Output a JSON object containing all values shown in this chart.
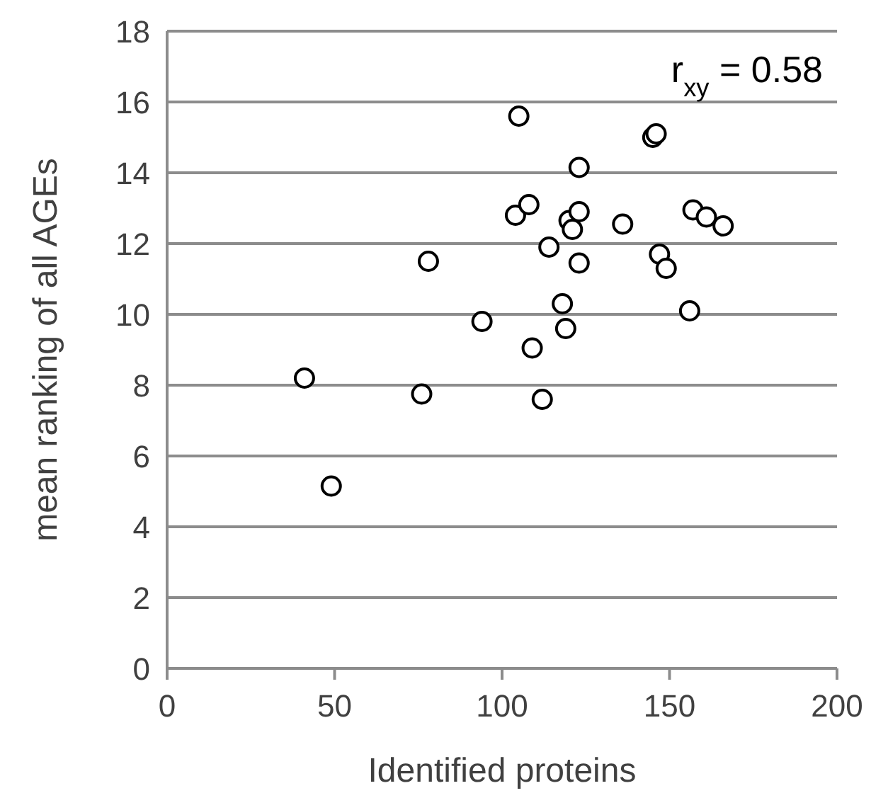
{
  "chart_data": {
    "type": "scatter",
    "xlabel": "Identified proteins",
    "ylabel": "mean ranking of all AGEs",
    "annotations": [
      "r$_{xy}$ = 0.58"
    ],
    "xlim": [
      0,
      200
    ],
    "xticks": [
      0,
      50,
      100,
      150,
      200
    ],
    "ylim": [
      0,
      18
    ],
    "yticks": [
      0,
      2,
      4,
      6,
      8,
      10,
      12,
      14,
      16,
      18
    ],
    "grid": "y",
    "marker": "circle",
    "series": [
      {
        "color": "#ffffff",
        "x": [
          41,
          49,
          76,
          78,
          94,
          104,
          105,
          108,
          109,
          112,
          114,
          118,
          119,
          120,
          121,
          123,
          123,
          123,
          136,
          145,
          146,
          147,
          149,
          156,
          157,
          161,
          166
        ],
        "values": [
          8.2,
          5.15,
          7.75,
          11.5,
          9.8,
          12.8,
          15.6,
          13.1,
          9.05,
          7.6,
          11.9,
          10.3,
          9.6,
          12.65,
          12.4,
          12.9,
          11.45,
          14.15,
          12.55,
          15.0,
          15.1,
          11.7,
          11.3,
          10.1,
          12.95,
          12.75,
          12.5
        ]
      }
    ]
  }
}
